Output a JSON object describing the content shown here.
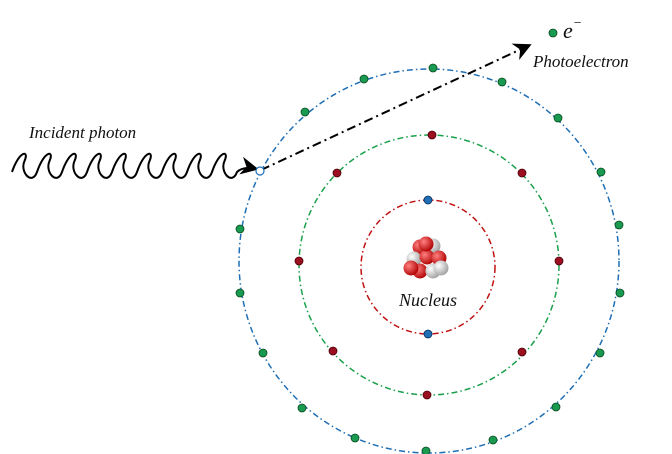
{
  "labels": {
    "incident_photon": "Incident photon",
    "photoelectron": "Photoelectron",
    "electron_symbol": "e",
    "electron_charge": "−",
    "nucleus": "Nucleus"
  }
}
